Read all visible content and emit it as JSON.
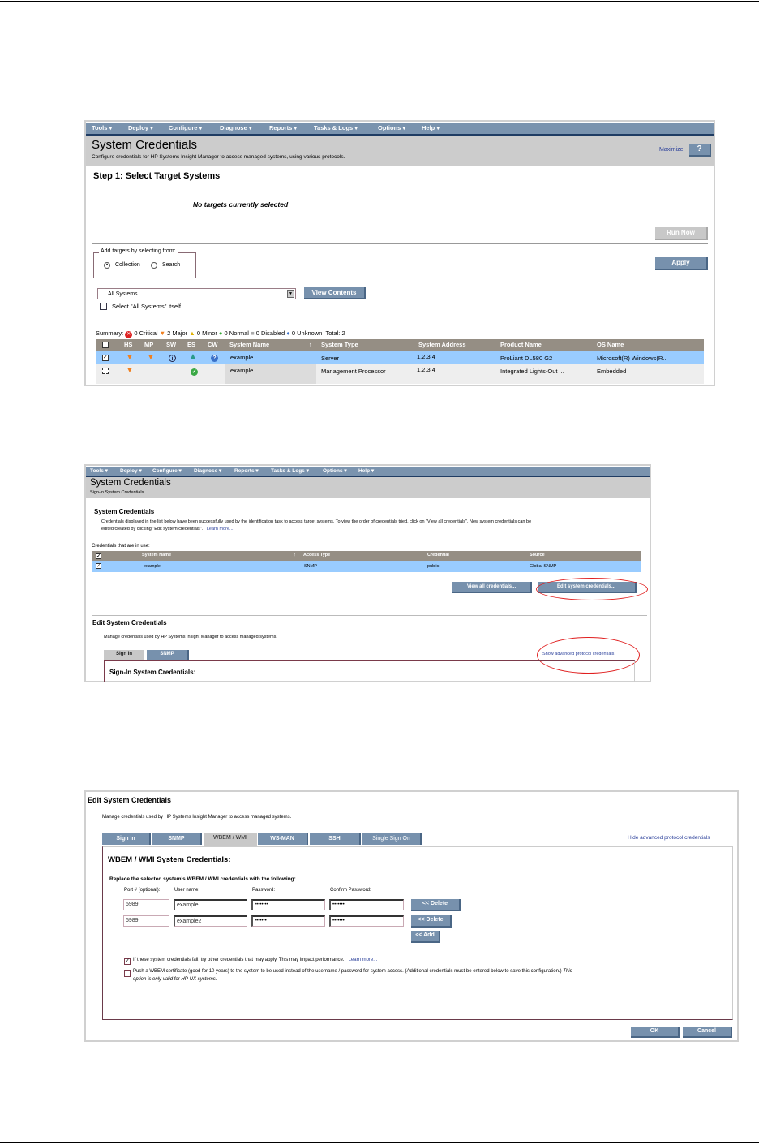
{
  "menu": [
    "Tools ▾",
    "Deploy ▾",
    "Configure ▾",
    "Diagnose ▾",
    "Reports ▾",
    "Tasks & Logs ▾",
    "Options ▾",
    "Help ▾"
  ],
  "s1": {
    "title": "System Credentials",
    "subtitle": "Configure credentials for HP Systems Insight Manager to access managed systems, using various protocols.",
    "maximize": "Maximize",
    "help": "?",
    "step": "Step 1: Select Target Systems",
    "no_targets": "No targets currently selected",
    "run_now": "Run Now",
    "apply": "Apply",
    "fieldset_legend": "Add targets by selecting from:",
    "radio_collection": "Collection",
    "radio_search": "Search",
    "select_value": "All Systems",
    "view_contents": "View Contents",
    "select_itself": "Select \"All Systems\" itself",
    "summary": {
      "label": "Summary:",
      "critical": "0 Critical",
      "major": "2 Major",
      "minor": "0 Minor",
      "normal": "0 Normal",
      "disabled": "0 Disabled",
      "unknown": "0 Unknown",
      "total": "Total: 2"
    },
    "columns": [
      "HS",
      "MP",
      "SW",
      "ES",
      "CW",
      "System Name",
      "System Type",
      "System Address",
      "Product Name",
      "OS Name"
    ],
    "sort_arrow": "↑",
    "rows": [
      {
        "checked": true,
        "hs": "major",
        "mp": "major",
        "sw": "info",
        "es": "minor",
        "cw": "unknown",
        "name": "example",
        "type": "Server",
        "address": "1.2.3.4",
        "product": "ProLiant DL580 G2",
        "os": "Microsoft(R) Windows(R..."
      },
      {
        "checked": false,
        "hs": "major",
        "es": "normal",
        "name": "example",
        "type": "Management Processor",
        "address": "1.2.3.4",
        "product": "Integrated Lights-Out ...",
        "os": "Embedded"
      }
    ]
  },
  "s2": {
    "title": "System Credentials",
    "subtitle": "Sign-in System Credentials",
    "heading": "System Credentials",
    "para1": "Credentials displayed in the list below have been successfully used by the identification task to access target systems. To view the order of credentials tried, click on \"View all credentials\". New system credentials can be",
    "para2": "edited/created by clicking \"Edit system credentials\".",
    "learn_more": "Learn more...",
    "in_use": "Credentials that are in use:",
    "columns": [
      "System Name",
      "Access Type",
      "Credential",
      "Source"
    ],
    "row": {
      "name": "example",
      "access": "SNMP",
      "credential": "public",
      "source": "Global SNMP"
    },
    "view_all": "View all credentials...",
    "edit": "Edit system credentials...",
    "edit_heading": "Edit System Credentials",
    "manage": "Manage credentials used by HP Systems Insight Manager to access managed systems.",
    "tabs": [
      "Sign In",
      "SNMP"
    ],
    "show_advanced": "Show advanced protocol credentials",
    "signin_heading": "Sign-In System Credentials:"
  },
  "s3": {
    "heading": "Edit System Credentials",
    "manage": "Manage credentials used by HP Systems Insight Manager to access managed systems.",
    "tabs": [
      "Sign In",
      "SNMP",
      "WBEM / WMI",
      "WS-MAN",
      "SSH",
      "Single Sign On"
    ],
    "hide_advanced": "Hide advanced protocol credentials",
    "box_heading": "WBEM / WMI System Credentials:",
    "replace": "Replace the selected system's WBEM / WMI credentials with the following:",
    "labels": {
      "port": "Port # (optional):",
      "user": "User name:",
      "password": "Password:",
      "confirm": "Confirm Password:"
    },
    "rows": [
      {
        "port": "5989",
        "user": "example",
        "password": "••••••••",
        "confirm": "•••••••"
      },
      {
        "port": "5989",
        "user": "example2",
        "password": "•••••••",
        "confirm": "•••••••"
      }
    ],
    "delete": "<< Delete",
    "add": "<< Add",
    "opt1": "If these system credentials fail, try other credentials that may apply. This may impact performance.",
    "opt1_learn": "Learn more...",
    "opt2": "Push a WBEM certificate (good for 10 years) to the system to be used instead of the username / password for system access. (Additional credentials must be entered below to save this configuration.)",
    "opt2_italic_a": "This",
    "opt2_italic_b": "option is only valid for HP-UX systems.",
    "ok": "OK",
    "cancel": "Cancel"
  },
  "colors": {
    "menu": "#7a93ae",
    "selected_row": "#99ccff",
    "header": "#958e84",
    "annotation": "#e02020"
  }
}
